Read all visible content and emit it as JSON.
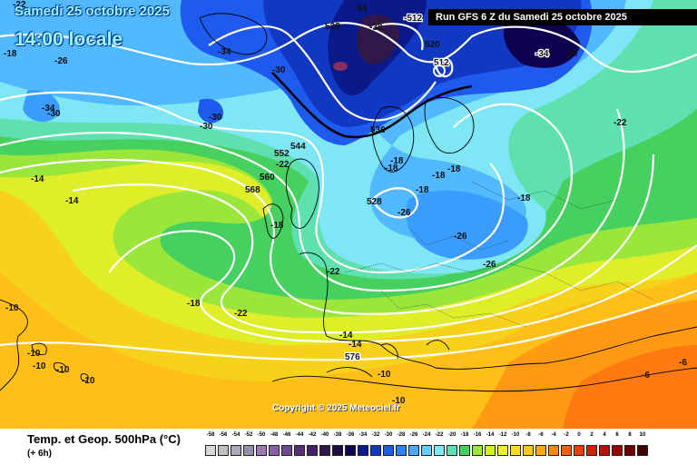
{
  "header": {
    "date": "Samedi 25 octobre 2025",
    "time": "14:00 locale",
    "run": "Run GFS 6 Z du Samedi 25 octobre 2025"
  },
  "copyright": "Copyright © 2025 Meteociel.fr",
  "footer": {
    "title": "Temp. et Geop. 500hPa (°C)",
    "step": "(+ 6h)"
  },
  "legend": {
    "values": [
      "-58",
      "-56",
      "-54",
      "-52",
      "-50",
      "-48",
      "-46",
      "-44",
      "-42",
      "-40",
      "-38",
      "-36",
      "-34",
      "-32",
      "-30",
      "-28",
      "-26",
      "-24",
      "-22",
      "-20",
      "-18",
      "-16",
      "-14",
      "-12",
      "-10",
      "-8",
      "-6",
      "-4",
      "-2",
      "0",
      "2",
      "4",
      "6",
      "8",
      "10"
    ],
    "colors": [
      "#d8d8d8",
      "#c0c0c0",
      "#a8a8b8",
      "#9090a8",
      "#a078b8",
      "#8860a8",
      "#704890",
      "#583078",
      "#402060",
      "#301848",
      "#200c40",
      "#100050",
      "#0a1a8a",
      "#1038c0",
      "#1f5aef",
      "#2f80ff",
      "#4aa8ff",
      "#66cdff",
      "#7de8f5",
      "#5de0b0",
      "#40d060",
      "#9be83a",
      "#d0f02a",
      "#f0f028",
      "#ffe020",
      "#ffc818",
      "#ffa814",
      "#ff8810",
      "#f86010",
      "#e84008",
      "#d82008",
      "#b81008",
      "#980808",
      "#700000",
      "#400000"
    ]
  },
  "map": {
    "labels": [
      "-22",
      "-34",
      "-18",
      "-26",
      "-34",
      "-38",
      "-512",
      "528",
      "-30",
      "-30",
      "-30",
      "-34",
      "-30",
      "520",
      "512",
      "-34",
      "-30",
      "-22",
      "536",
      "544",
      "552",
      "-22",
      "560",
      "568",
      "-14",
      "-14",
      "-18",
      "-18",
      "-18",
      "-18",
      "-18",
      "-18",
      "528",
      "-26",
      "-26",
      "-26",
      "-18",
      "-22",
      "-18",
      "-22",
      "-10",
      "-10",
      "-10",
      "-10",
      "-10",
      "-14",
      "576",
      "-14",
      "-10",
      "-10",
      "-6",
      "-6"
    ]
  }
}
